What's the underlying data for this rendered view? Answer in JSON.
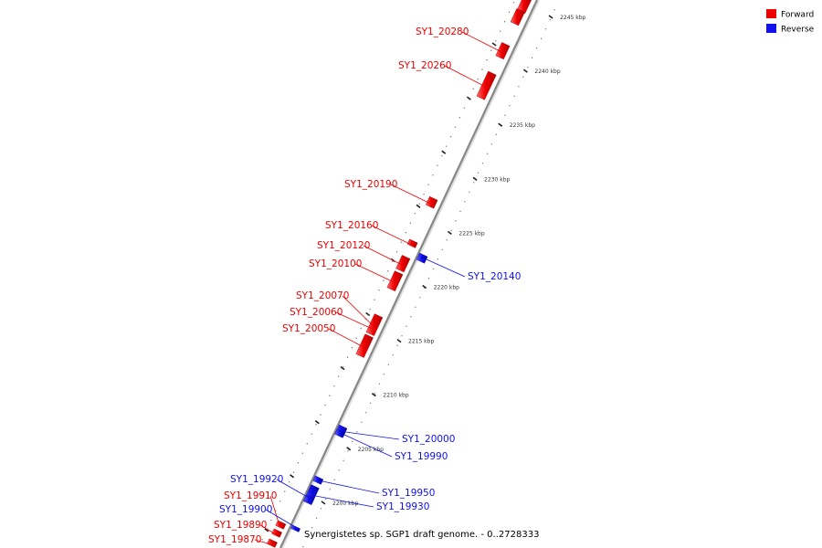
{
  "caption": "Synergistetes sp. SGP1 draft genome. - 0..2728333",
  "colors": {
    "forward": "#ee0000",
    "reverse": "#1111ee",
    "axis": "#999999"
  },
  "legend": [
    {
      "label": "Forward",
      "color": "#ee0000"
    },
    {
      "label": "Reverse",
      "color": "#1111ee"
    }
  ],
  "axis": {
    "ticks": [
      {
        "label": "2245 kbp",
        "kbp": 2245
      },
      {
        "label": "2240 kbp",
        "kbp": 2240
      },
      {
        "label": "2235 kbp",
        "kbp": 2235
      },
      {
        "label": "2230 kbp",
        "kbp": 2230
      },
      {
        "label": "2225 kbp",
        "kbp": 2225
      },
      {
        "label": "2220 kbp",
        "kbp": 2220
      },
      {
        "label": "2215 kbp",
        "kbp": 2215
      },
      {
        "label": "2210 kbp",
        "kbp": 2210
      },
      {
        "label": "2205 kbp",
        "kbp": 2205
      },
      {
        "label": "2200 kbp",
        "kbp": 2200
      }
    ]
  },
  "genes": [
    {
      "name": "SY1_20280",
      "strand": "forward"
    },
    {
      "name": "SY1_20260",
      "strand": "forward"
    },
    {
      "name": "SY1_20190",
      "strand": "forward"
    },
    {
      "name": "SY1_20160",
      "strand": "forward"
    },
    {
      "name": "SY1_20120",
      "strand": "forward"
    },
    {
      "name": "SY1_20100",
      "strand": "forward"
    },
    {
      "name": "SY1_20070",
      "strand": "forward"
    },
    {
      "name": "SY1_20060",
      "strand": "forward"
    },
    {
      "name": "SY1_20050",
      "strand": "forward"
    },
    {
      "name": "SY1_20140",
      "strand": "reverse"
    },
    {
      "name": "SY1_20000",
      "strand": "reverse"
    },
    {
      "name": "SY1_19990",
      "strand": "reverse"
    },
    {
      "name": "SY1_19950",
      "strand": "reverse"
    },
    {
      "name": "SY1_19930",
      "strand": "reverse"
    },
    {
      "name": "SY1_19920",
      "strand": "reverse"
    },
    {
      "name": "SY1_19910",
      "strand": "forward"
    },
    {
      "name": "SY1_19900",
      "strand": "reverse"
    },
    {
      "name": "SY1_19890",
      "strand": "forward"
    },
    {
      "name": "SY1_19870",
      "strand": "forward"
    }
  ]
}
